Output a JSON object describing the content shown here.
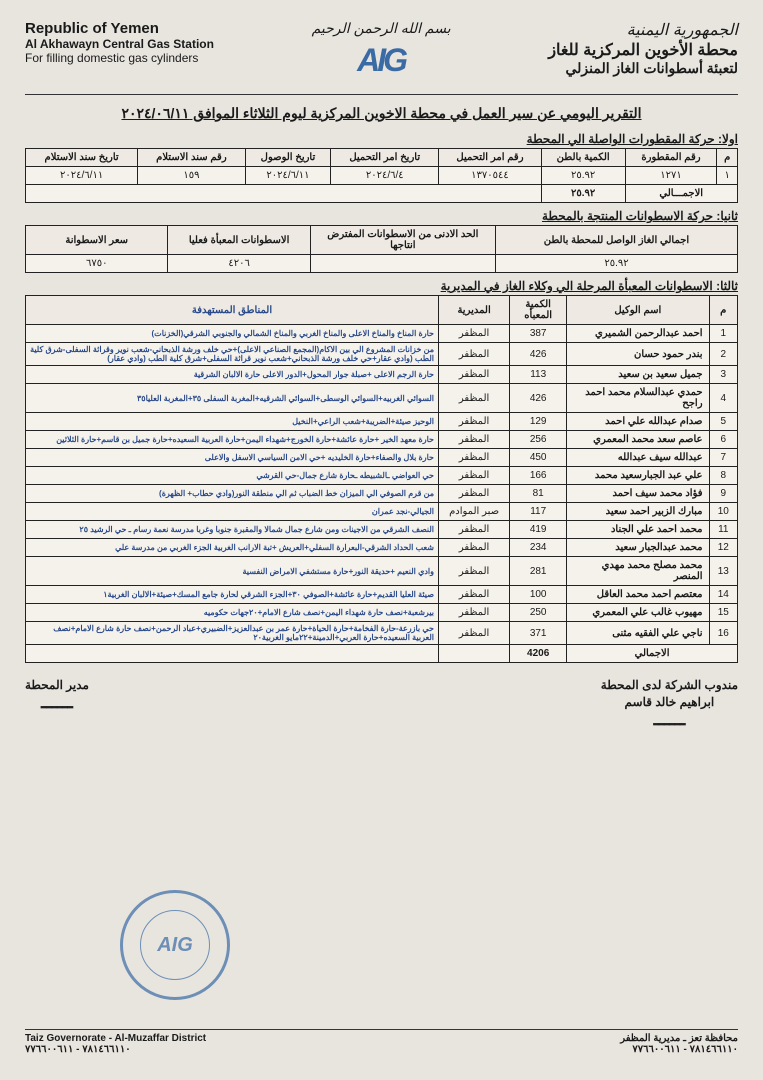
{
  "header": {
    "left": {
      "line1": "Republic of Yemen",
      "line2": "Al Akhawayn Central Gas Station",
      "line3": "For filling domestic gas cylinders"
    },
    "bismillah": "بسم الله الرحمن الرحيم",
    "logo": "AIG",
    "right": {
      "line0": "الجمهورية اليمنية",
      "line1": "محطة الأخوين المركزية للغاز",
      "line2": "لتعبئة أسطوانات الغاز المنزلي"
    }
  },
  "report_title": "التقرير اليومي عن سير العمل في محطة الاخوين المركزية ليوم الثلاثاء الموافق ٢٠٢٤/٠٦/١١",
  "section1": {
    "label": "اولا: حركة المقطورات الواصلة الي المحطة",
    "headers": [
      "م",
      "رقم المقطورة",
      "الكمية بالطن",
      "رقم امر التحميل",
      "تاريخ امر التحميل",
      "تاريخ الوصول",
      "رقم سند الاستلام",
      "تاريخ سند الاستلام"
    ],
    "row": [
      "١",
      "١٢٧١",
      "٢٥.٩٢",
      "١٣٧٠٥٤٤",
      "٢٠٢٤/٦/٤",
      "٢٠٢٤/٦/١١",
      "١٥٩",
      "٢٠٢٤/٦/١١"
    ],
    "total_label": "الاجمـــالي",
    "total_value": "٢٥.٩٢"
  },
  "section2": {
    "label": "ثانيا: حركة الاسطوانات المنتجة بالمحطة",
    "headers": [
      "اجمالي الغاز الواصل للمحطة بالطن",
      "الحد الادنى من الاسطوانات المفترض انتاجها",
      "الاسطوانات المعبأة فعليا",
      "سعر الاسطوانة"
    ],
    "row": [
      "٢٥.٩٢",
      "",
      "٤٢٠٦",
      "٦٧٥٠"
    ]
  },
  "section3": {
    "label": "ثالثا: الاسطوانات المعبأة المرحلة الي وكلاء الغاز في المديرية",
    "headers": [
      "م",
      "اسم الوكيل",
      "الكمية المعبأه",
      "المديرية",
      "المناطق المستهدفة"
    ],
    "rows": [
      {
        "n": "1",
        "name": "احمد عبدالرحمن الشميري",
        "qty": "387",
        "dist": "المظفر",
        "areas": "حارة المناخ والمناخ الاعلى والمناخ الغربي والمناخ الشمالي والجنوبي الشرقي(الخزنات)"
      },
      {
        "n": "2",
        "name": "بندر حمود حسان",
        "qty": "426",
        "dist": "المظفر",
        "areas": "من خزانات المشروع الي بين الاكام(المجمع الصناعي الاعلى)+حي خلف ورشة الذبحاني-شعب نوير وقراثة السفلى-شرق كلية الطب (وادي عقار+حي خلف ورشة الذبحاني+شعب نوير قراثة السفلى+شرق كلية الطب (وادي عقار)"
      },
      {
        "n": "3",
        "name": "جميل سعيد بن سعيد",
        "qty": "113",
        "dist": "المظفر",
        "areas": "حارة الرجم الاعلى +صبلة جوار المحول+الدور الاعلى حارة الالبان الشرقية"
      },
      {
        "n": "4",
        "name": "حمدي عبدالسلام محمد احمد راجح",
        "qty": "426",
        "dist": "المظفر",
        "areas": "السوائي الغربيه+السوائي الوسطى+السوائي الشرقيه+المغربة السفلى ٣٥+المغربة العليا٣٥"
      },
      {
        "n": "5",
        "name": "صدام عبدالله علي احمد",
        "qty": "129",
        "dist": "المظفر",
        "areas": "الوحيز صيئة+الضريبة+شعب الراعي+النخيل"
      },
      {
        "n": "6",
        "name": "عاصم سعد محمد المعمري",
        "qty": "256",
        "dist": "المظفر",
        "areas": "حارة معهد الخير +حارة عائشة+حارة الخورج+شهداء اليمن+حارة العربية السعيده+حارة جميل بن قاسم+حارة الثلاثين"
      },
      {
        "n": "7",
        "name": "عبدالله سيف عبدالله",
        "qty": "450",
        "dist": "المظفر",
        "areas": "حارة بلال والصفاء+حارة الخليديه +حي الامن السياسي الاسفل والاعلى"
      },
      {
        "n": "8",
        "name": "علي عبد الجبارسعيد محمد",
        "qty": "166",
        "dist": "المظفر",
        "areas": "حي العواضي ـالشبيطه ـحارة شارع جمال-حي القرشي"
      },
      {
        "n": "9",
        "name": "فؤاد محمد سيف احمد",
        "qty": "81",
        "dist": "المظفر",
        "areas": "من قرم الصوفي الي الميزان خط الضباب ثم الي منطقة النور(وادي حطاب+ الظهرة)"
      },
      {
        "n": "10",
        "name": "مبارك الزبير احمد سعيد",
        "qty": "117",
        "dist": "صبر الموادم",
        "areas": "الجيالي-نجد عمران"
      },
      {
        "n": "11",
        "name": "محمد احمد علي الجناد",
        "qty": "419",
        "dist": "المظفر",
        "areas": "النصف الشرقي من الاجينات ومن شارع جمال شمالا والمقبرة جنوبا وغربا مدرسة نعمة رسام ـ حي الرشيد ٢٥"
      },
      {
        "n": "12",
        "name": "محمد عبدالجبار سعيد",
        "qty": "234",
        "dist": "المظفر",
        "areas": "شعب الحداد الشرقي-البعرارة السفلي+العريش +تبة الارانب الغربية الجزء الغربي من مدرسة علي"
      },
      {
        "n": "13",
        "name": "محمد مصلح محمد مهدي المنصر",
        "qty": "281",
        "dist": "المظفر",
        "areas": "وادي النعيم +حديقة النور+حارة مستشفي الامراض النفسية"
      },
      {
        "n": "14",
        "name": "معتصم احمد محمد العاقل",
        "qty": "100",
        "dist": "المظفر",
        "areas": "صيئة العليا القديم+حارة عائشة+الصوفي ٣٠+الجزء الشرقي لحارة جامع المسك+صيئة+الالبان الغربية١"
      },
      {
        "n": "15",
        "name": "مهيوب غالب علي المعمري",
        "qty": "250",
        "dist": "المظفر",
        "areas": "بيرشعبة+نصف حارة شهداء اليمن+نصف شارع الامام+٢٠جهات حكوميه"
      },
      {
        "n": "16",
        "name": "ناجي علي الفقيه مثنى",
        "qty": "371",
        "dist": "المظفر",
        "areas": "حي بازرعة-حارة الفخامة+حارة الحياة+حارة عمر بن عبدالعزيز+الضبيري+عباد الرحمن+نصف حارة شارع الامام+نصف العربية السعيده+حارة العربي+الدمينة+٢٢مايو الغربية٢٠"
      }
    ],
    "total_label": "الاجمالي",
    "total_value": "4206"
  },
  "signatures": {
    "right_line1": "مندوب الشركة لدى المحطة",
    "right_line2": "ابراهيم خالد قاسم",
    "left_line1": "مدير المحطة"
  },
  "footer": {
    "left_line1": "Taiz Governorate - Al-Muzaffar District",
    "left_line2": "٧٨١٤٦٦١١٠ - ٧٧٦٦٠٠٦١١",
    "right_line1": "محافظة تعز ـ مديرية المظفر",
    "right_line2": "٧٨١٤٦٦١١٠ - ٧٧٦٦٠٠٦١١"
  },
  "stamp_logo": "AIG"
}
